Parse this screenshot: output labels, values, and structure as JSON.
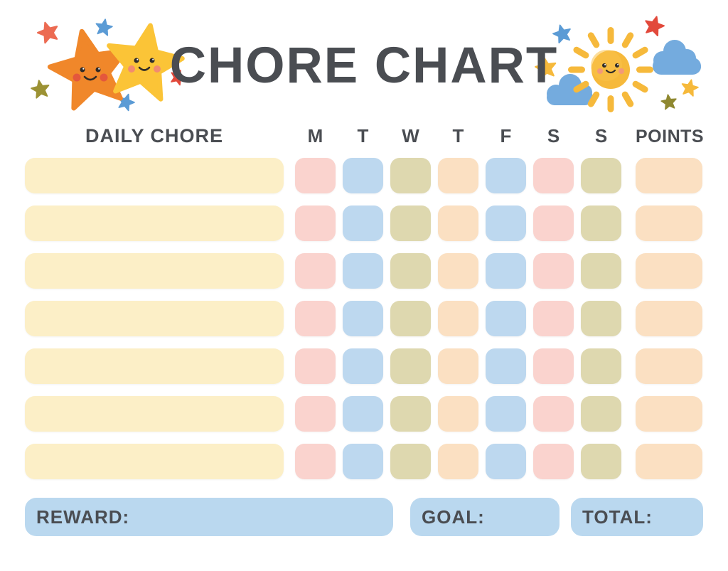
{
  "title": "CHORE CHART",
  "colors": {
    "cream": "#FCEFC7",
    "pink": "#FAD3CE",
    "blue": "#BDD8EF",
    "olive": "#DED8AF",
    "peach": "#FBE0C2",
    "footer_blue": "#BAD8EF",
    "text": "#4A4D52",
    "title_text": "#4A4D52",
    "star_orange": "#F0872A",
    "star_yellow": "#FBC437",
    "sun_yellow": "#F6B93B",
    "cloud_blue": "#74ABDE",
    "mini_star_coral": "#EC6B52",
    "mini_star_blue": "#5B9BD5",
    "mini_star_olive": "#9C9234",
    "mini_star_red": "#E2493B",
    "mini_star_dark_olive": "#8F8830"
  },
  "table": {
    "chore_header": "DAILY CHORE",
    "day_headers": [
      "M",
      "T",
      "W",
      "T",
      "F",
      "S",
      "S"
    ],
    "points_header": "POINTS",
    "row_count": 7,
    "day_pattern": [
      "pink",
      "blue",
      "olive",
      "peach",
      "blue",
      "pink",
      "olive"
    ],
    "chore_color": "cream",
    "points_color": "peach",
    "cell_values": []
  },
  "footer": {
    "reward_label": "REWARD:",
    "goal_label": "GOAL:",
    "total_label": "TOTAL:",
    "reward_value": "",
    "goal_value": "",
    "total_value": ""
  },
  "decorations": {
    "left": [
      "orange-star-face-icon",
      "yellow-star-face-icon",
      "coral-mini-star-icon",
      "blue-mini-star-icon",
      "olive-mini-star-icon",
      "blue-mini-star-icon",
      "red-mini-star-icon"
    ],
    "right": [
      "sun-face-icon",
      "cloud-icon",
      "cloud-icon",
      "blue-mini-star-icon",
      "red-mini-star-icon",
      "yellow-mini-star-icon",
      "yellow-mini-star-icon",
      "olive-mini-star-icon"
    ]
  }
}
